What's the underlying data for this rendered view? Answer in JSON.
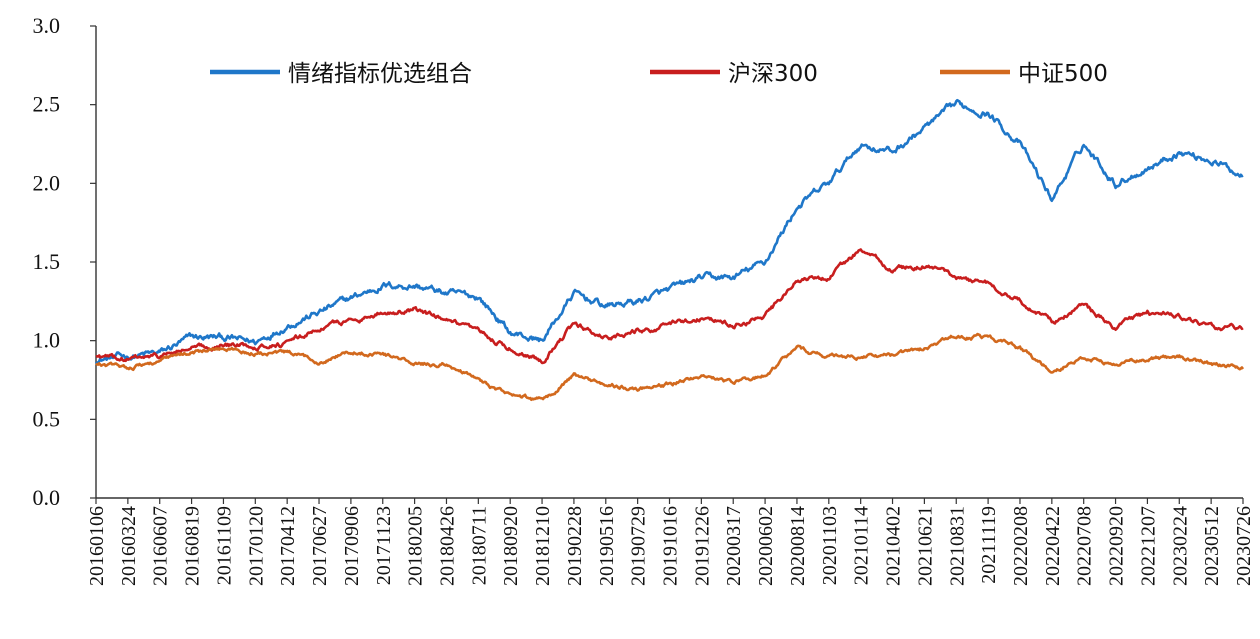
{
  "chart_data": {
    "type": "line",
    "title": "",
    "xlabel": "",
    "ylabel": "",
    "ylim": [
      0,
      3.0
    ],
    "yticks": [
      "0.0",
      "0.5",
      "1.0",
      "1.5",
      "2.0",
      "2.5",
      "3.0"
    ],
    "grid": false,
    "legend_position": "top",
    "categories": [
      "20160106",
      "20160324",
      "20160607",
      "20160819",
      "20161109",
      "20170120",
      "20170412",
      "20170627",
      "20170906",
      "20171123",
      "20180205",
      "20180426",
      "20180711",
      "20180920",
      "20181210",
      "20190228",
      "20190516",
      "20190729",
      "20191016",
      "20191226",
      "20200317",
      "20200602",
      "20200814",
      "20201103",
      "20210114",
      "20210402",
      "20210621",
      "20210831",
      "20211119",
      "20220208",
      "20220422",
      "20220708",
      "20220920",
      "20221207",
      "20230224",
      "20230512",
      "20230726"
    ],
    "series": [
      {
        "name": "情绪指标优选组合",
        "color": "#1f77c9",
        "values": [
          0.88,
          0.9,
          0.92,
          1.02,
          1.02,
          0.99,
          1.1,
          1.18,
          1.27,
          1.35,
          1.35,
          1.3,
          1.28,
          1.05,
          1.0,
          1.3,
          1.22,
          1.25,
          1.32,
          1.4,
          1.4,
          1.5,
          1.85,
          2.0,
          2.25,
          2.2,
          2.35,
          2.5,
          2.45,
          2.25,
          1.9,
          2.25,
          2.0,
          2.1,
          2.2,
          2.15,
          2.05
        ]
      },
      {
        "name": "沪深300",
        "color": "#c81e1e",
        "values": [
          0.9,
          0.88,
          0.9,
          0.95,
          0.97,
          0.97,
          0.98,
          1.08,
          1.13,
          1.18,
          1.2,
          1.12,
          1.05,
          0.95,
          0.88,
          1.1,
          1.02,
          1.06,
          1.1,
          1.15,
          1.1,
          1.15,
          1.38,
          1.4,
          1.58,
          1.45,
          1.48,
          1.4,
          1.37,
          1.25,
          1.12,
          1.22,
          1.08,
          1.18,
          1.15,
          1.08,
          1.08
        ]
      },
      {
        "name": "中证500",
        "color": "#d2691e",
        "values": [
          0.85,
          0.83,
          0.87,
          0.93,
          0.95,
          0.92,
          0.92,
          0.87,
          0.93,
          0.92,
          0.85,
          0.85,
          0.75,
          0.65,
          0.62,
          0.78,
          0.72,
          0.7,
          0.72,
          0.78,
          0.73,
          0.78,
          0.95,
          0.9,
          0.9,
          0.9,
          0.95,
          1.03,
          1.02,
          0.95,
          0.8,
          0.9,
          0.85,
          0.88,
          0.9,
          0.85,
          0.82
        ]
      }
    ]
  }
}
